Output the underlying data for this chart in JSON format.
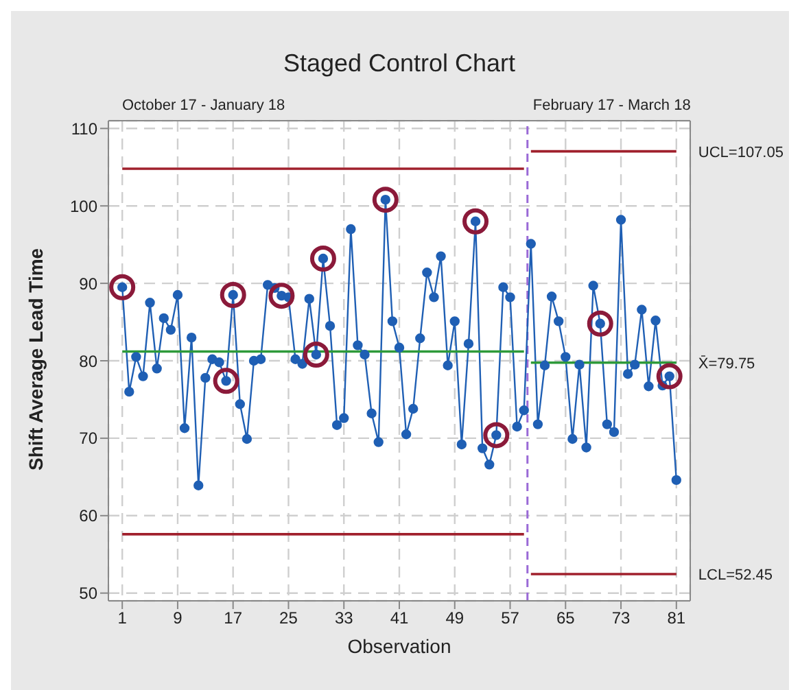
{
  "chart_data": {
    "type": "line",
    "title": "Staged Control Chart",
    "xlabel": "Observation",
    "ylabel": "Shift Average Lead Time",
    "xlim": [
      -1,
      83
    ],
    "xticks": [
      1,
      9,
      17,
      25,
      33,
      41,
      49,
      57,
      65,
      73,
      81
    ],
    "ylim": [
      49,
      111
    ],
    "yticks": [
      50,
      60,
      70,
      80,
      90,
      100,
      110
    ],
    "grid": true,
    "marker": "circle",
    "line_style": "solid",
    "series": [
      {
        "color": "#1f5fb4",
        "x": [
          1,
          2,
          3,
          4,
          5,
          6,
          7,
          8,
          9,
          10,
          11,
          12,
          13,
          14,
          15,
          16,
          17,
          18,
          19,
          20,
          21,
          22,
          23,
          24,
          25,
          26,
          27,
          28,
          29,
          30,
          31,
          32,
          33,
          34,
          35,
          36,
          37,
          38,
          39,
          40,
          41,
          42,
          43,
          44,
          45,
          46,
          47,
          48,
          49,
          50,
          51,
          52,
          53,
          54,
          55,
          56,
          57,
          58,
          59,
          60,
          61,
          62,
          63,
          64,
          65,
          66,
          67,
          68,
          69,
          70,
          71,
          72,
          73,
          74,
          75,
          76,
          77,
          78,
          79,
          80,
          81
        ],
        "values": [
          89.5,
          76,
          80.5,
          78,
          87.5,
          79,
          85.5,
          84,
          88.5,
          71.3,
          83,
          63.9,
          77.8,
          80.2,
          79.8,
          77.4,
          88.5,
          74.4,
          69.9,
          80,
          80.2,
          89.8,
          89.4,
          88.4,
          88.2,
          80.2,
          79.6,
          88,
          80.8,
          93.2,
          84.5,
          71.7,
          72.6,
          97,
          82,
          80.8,
          73.2,
          69.5,
          100.8,
          85.1,
          81.7,
          70.5,
          73.8,
          82.9,
          91.4,
          88.2,
          93.5,
          79.4,
          85.1,
          69.2,
          82.2,
          98,
          68.7,
          66.6,
          70.4,
          89.5,
          88.2,
          71.5,
          73.6,
          95.1,
          71.8,
          79.4,
          88.3,
          85.1,
          80.5,
          69.9,
          79.5,
          68.8,
          89.7,
          84.8,
          71.8,
          70.8,
          98.2,
          78.3,
          79.5,
          86.6,
          76.7,
          85.2,
          76.8,
          78,
          64.6
        ]
      },
      {
        "type": "scatter",
        "color": "#8b1a3a",
        "x": [
          1,
          16,
          17,
          24,
          29,
          30,
          39,
          52,
          55,
          70,
          80
        ],
        "values": [
          89.5,
          77.4,
          88.5,
          88.4,
          80.8,
          93.2,
          100.8,
          98,
          70.4,
          84.8,
          78
        ]
      },
      {
        "type": "line",
        "marker": "none",
        "color": "#a0202c",
        "x": [
          1,
          59
        ],
        "values": [
          104.8,
          104.8
        ]
      },
      {
        "type": "line",
        "marker": "none",
        "color": "#2e9a3a",
        "x": [
          1,
          59
        ],
        "values": [
          81.2,
          81.2
        ]
      },
      {
        "type": "line",
        "marker": "none",
        "color": "#a0202c",
        "x": [
          1,
          59
        ],
        "values": [
          57.6,
          57.6
        ]
      },
      {
        "type": "line",
        "marker": "none",
        "name": "UCL=107.05",
        "color": "#a0202c",
        "x": [
          60,
          81
        ],
        "values": [
          107.05,
          107.05
        ]
      },
      {
        "type": "line",
        "marker": "none",
        "name": "X̄=79.75",
        "color": "#2e9a3a",
        "x": [
          60,
          81
        ],
        "values": [
          79.75,
          79.75
        ]
      },
      {
        "type": "line",
        "marker": "none",
        "name": "LCL=52.45",
        "color": "#a0202c",
        "x": [
          60,
          81
        ],
        "values": [
          52.45,
          52.45
        ]
      }
    ],
    "ref_lines": [
      {
        "axis": "x",
        "value": 59.5,
        "color": "#9a6ad6",
        "line_style": "dashed"
      }
    ],
    "annotations": [
      "October 17 - January 18",
      "February 17 - March 18"
    ]
  }
}
